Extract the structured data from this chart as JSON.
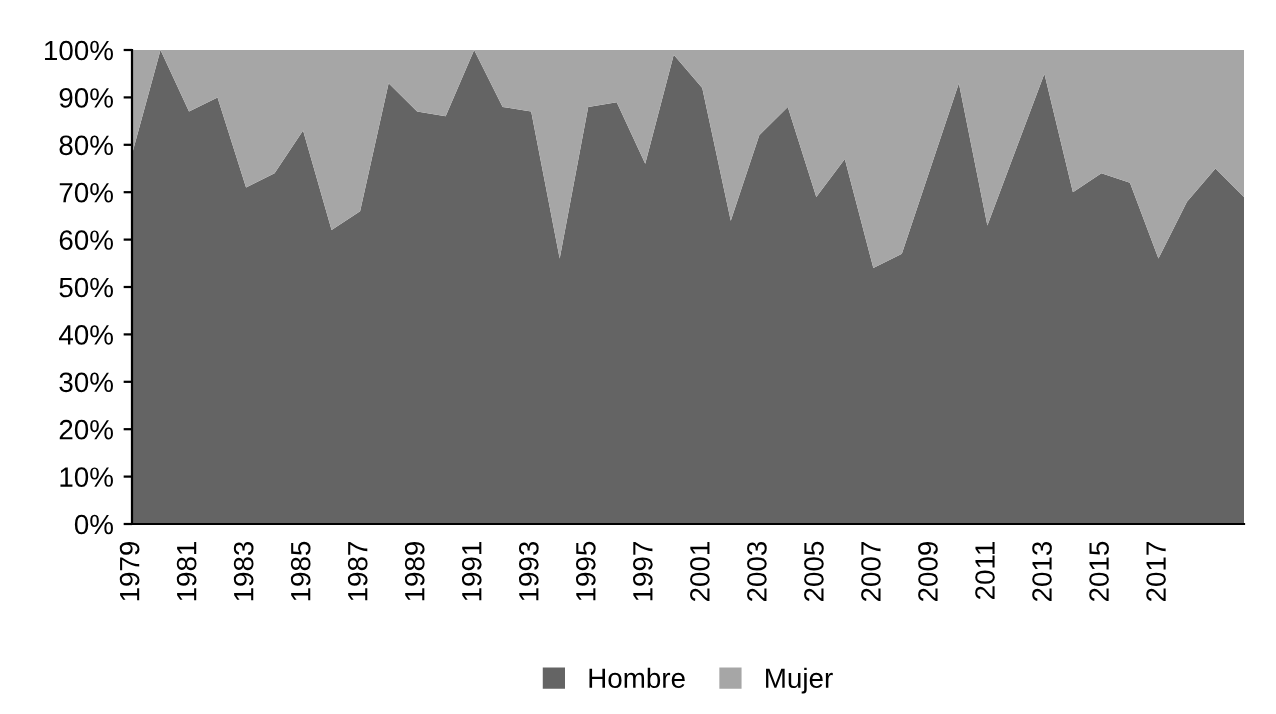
{
  "chart_data": {
    "type": "area",
    "stacked": true,
    "categories": [
      "1979",
      null,
      "1981",
      null,
      "1983",
      null,
      "1985",
      null,
      "1987",
      null,
      "1989",
      null,
      "1991",
      null,
      "1993",
      null,
      "1995",
      null,
      "1997",
      null,
      "2001",
      null,
      "2003",
      null,
      "2005",
      null,
      "2007",
      null,
      "2009",
      null,
      "2011",
      null,
      "2013",
      null,
      "2015",
      null,
      "2017",
      null,
      null,
      null
    ],
    "series": [
      {
        "name": "Hombre",
        "color": "#646464",
        "values": [
          78,
          100,
          87,
          90,
          71,
          74,
          83,
          62,
          66,
          93,
          87,
          86,
          100,
          88,
          87,
          56,
          88,
          89,
          76,
          99,
          92,
          64,
          82,
          88,
          69,
          77,
          54,
          57,
          75,
          93,
          63,
          79,
          95,
          70,
          74,
          72,
          56,
          68,
          75,
          69
        ]
      },
      {
        "name": "Mujer",
        "color": "#a6a6a6",
        "values": [
          22,
          0,
          13,
          10,
          29,
          26,
          17,
          38,
          34,
          7,
          13,
          14,
          0,
          12,
          13,
          44,
          12,
          11,
          24,
          1,
          8,
          36,
          18,
          12,
          31,
          23,
          46,
          43,
          25,
          7,
          37,
          21,
          5,
          30,
          26,
          28,
          44,
          32,
          25,
          31
        ]
      }
    ],
    "ylim": [
      0,
      100
    ],
    "yticks": [
      {
        "value": 0,
        "label": "0%"
      },
      {
        "value": 10,
        "label": "10%"
      },
      {
        "value": 20,
        "label": "20%"
      },
      {
        "value": 30,
        "label": "30%"
      },
      {
        "value": 40,
        "label": "40%"
      },
      {
        "value": 50,
        "label": "50%"
      },
      {
        "value": 60,
        "label": "60%"
      },
      {
        "value": 70,
        "label": "70%"
      },
      {
        "value": 80,
        "label": "80%"
      },
      {
        "value": 90,
        "label": "90%"
      },
      {
        "value": 100,
        "label": "100%"
      }
    ],
    "grid": false,
    "legend": "bottom"
  }
}
